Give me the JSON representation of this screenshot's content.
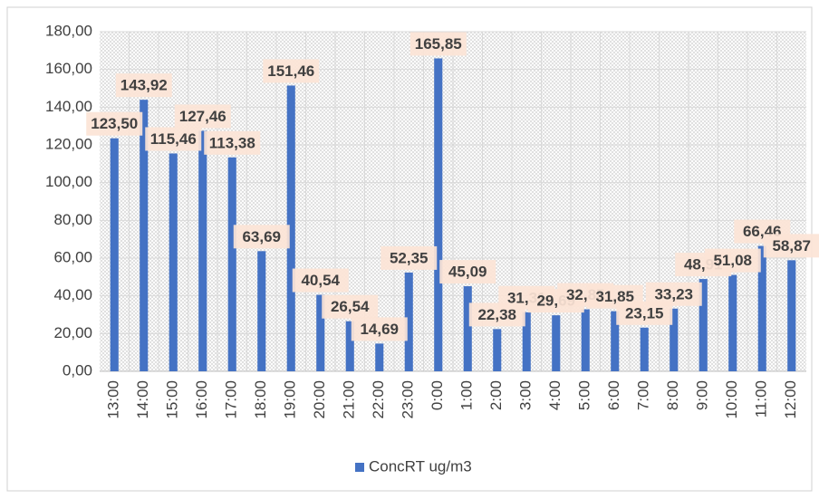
{
  "chart_data": {
    "type": "bar",
    "categories": [
      "13:00",
      "14:00",
      "15:00",
      "16:00",
      "17:00",
      "18:00",
      "19:00",
      "20:00",
      "21:00",
      "22:00",
      "23:00",
      "0:00",
      "1:00",
      "2:00",
      "3:00",
      "4:00",
      "5:00",
      "6:00",
      "7:00",
      "8:00",
      "9:00",
      "10:00",
      "11:00",
      "12:00"
    ],
    "series": [
      {
        "name": "ConcRT ug/m3",
        "color": "#4472c4",
        "values": [
          123.5,
          143.92,
          115.46,
          127.46,
          113.38,
          63.69,
          151.46,
          40.54,
          26.54,
          14.69,
          52.35,
          165.85,
          45.09,
          22.38,
          31.31,
          29.69,
          32.85,
          31.85,
          23.15,
          33.23,
          48.91,
          51.08,
          66.46,
          58.87
        ],
        "value_labels": [
          "123,50",
          "143,92",
          "115,46",
          "127,46",
          "113,38",
          "63,69",
          "151,46",
          "40,54",
          "26,54",
          "14,69",
          "52,35",
          "165,85",
          "45,09",
          "22,38",
          "31,31",
          "29,69",
          "32,85",
          "31,85",
          "23,15",
          "33,23",
          "48,91",
          "51,08",
          "66,46",
          "58,87"
        ]
      }
    ],
    "ylim": [
      0,
      180
    ],
    "yticks": [
      {
        "value": 0,
        "label": "0,00"
      },
      {
        "value": 20,
        "label": "20,00"
      },
      {
        "value": 40,
        "label": "40,00"
      },
      {
        "value": 60,
        "label": "60,00"
      },
      {
        "value": 80,
        "label": "80,00"
      },
      {
        "value": 100,
        "label": "100,00"
      },
      {
        "value": 120,
        "label": "120,00"
      },
      {
        "value": 140,
        "label": "140,00"
      },
      {
        "value": 160,
        "label": "160,00"
      },
      {
        "value": 180,
        "label": "180,00"
      }
    ],
    "grid": true,
    "legend": "bottom"
  }
}
